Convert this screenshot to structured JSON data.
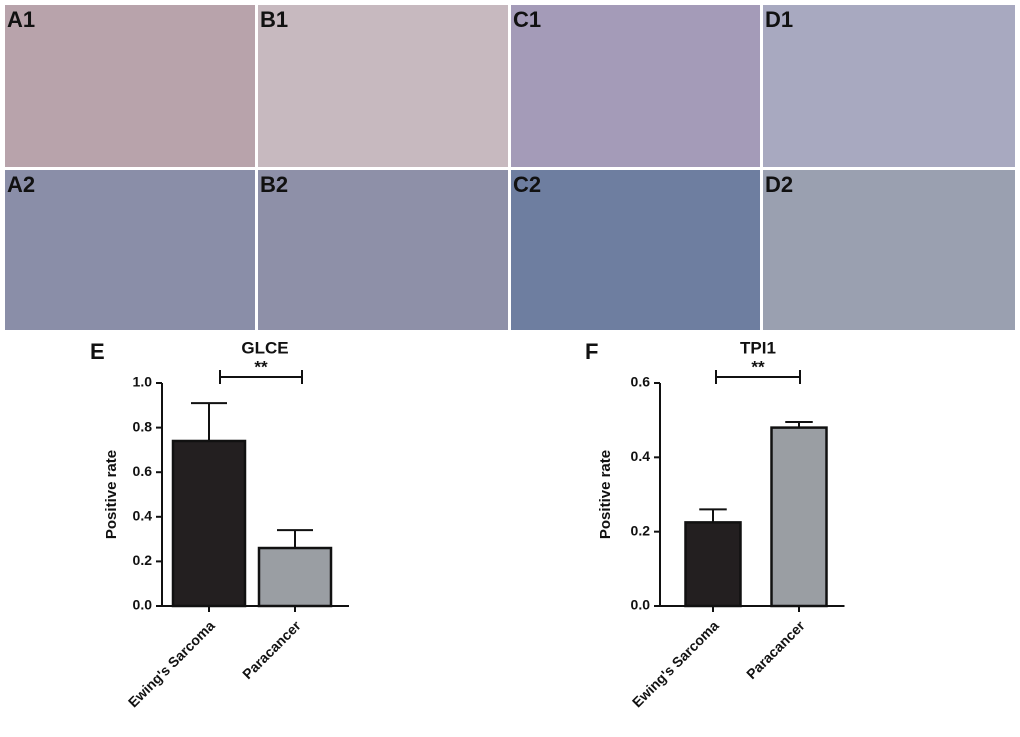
{
  "image_panels": [
    "A1",
    "B1",
    "C1",
    "D1",
    "A2",
    "B2",
    "C2",
    "D2"
  ],
  "chart_data": [
    {
      "type": "bar",
      "panel": "E",
      "title": "GLCE",
      "ylabel": "Positive rate",
      "categories": [
        "Ewing's Sarcoma",
        "Paracancer"
      ],
      "values": [
        0.74,
        0.26
      ],
      "errors": [
        0.17,
        0.08
      ],
      "colors": [
        "#231f20",
        "#9a9ea3"
      ],
      "significance": "**",
      "ylim": [
        0,
        1.0
      ],
      "yticks": [
        {
          "value": 0,
          "label": "0.0"
        },
        {
          "value": 0.2,
          "label": "0.2"
        },
        {
          "value": 0.4,
          "label": "0.4"
        },
        {
          "value": 0.6,
          "label": "0.6"
        },
        {
          "value": 0.8,
          "label": "0.8"
        },
        {
          "value": 1.0,
          "label": "1.0"
        }
      ]
    },
    {
      "type": "bar",
      "panel": "F",
      "title": "TPI1",
      "ylabel": "Positive rate",
      "categories": [
        "Ewing's Sarcoma",
        "Paracancer"
      ],
      "values": [
        0.225,
        0.48
      ],
      "errors": [
        0.035,
        0.015
      ],
      "colors": [
        "#231f20",
        "#9a9ea3"
      ],
      "significance": "**",
      "ylim": [
        0,
        0.6
      ],
      "yticks": [
        {
          "value": 0,
          "label": "0.0"
        },
        {
          "value": 0.2,
          "label": "0.2"
        },
        {
          "value": 0.4,
          "label": "0.4"
        },
        {
          "value": 0.6,
          "label": "0.6"
        }
      ]
    }
  ]
}
